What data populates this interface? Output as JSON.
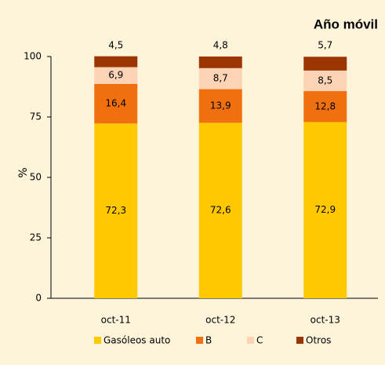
{
  "chart_data": {
    "type": "stacked_bar",
    "title": "Año móvil",
    "y_label": "%",
    "categories": [
      "oct-11",
      "oct-12",
      "oct-13"
    ],
    "series": [
      {
        "name": "Gasóleos auto",
        "color": "#ffc800",
        "values": [
          72.3,
          72.6,
          72.9
        ],
        "value_labels": [
          "72,3",
          "72,6",
          "72,9"
        ]
      },
      {
        "name": "B",
        "color": "#f07010",
        "values": [
          16.4,
          13.9,
          12.8
        ],
        "value_labels": [
          "16,4",
          "13,9",
          "12,8"
        ]
      },
      {
        "name": "C",
        "color": "#fdd3b5",
        "values": [
          6.9,
          8.7,
          8.5
        ],
        "value_labels": [
          "6,9",
          "8,7",
          "8,5"
        ]
      },
      {
        "name": "Otros",
        "color": "#9b3503",
        "values": [
          4.5,
          4.8,
          5.7
        ],
        "value_labels": [
          "4,5",
          "4,8",
          "5,7"
        ]
      }
    ],
    "ylim": [
      0,
      100
    ],
    "yticks": [
      0,
      25,
      50,
      75,
      100
    ],
    "grid": false
  }
}
